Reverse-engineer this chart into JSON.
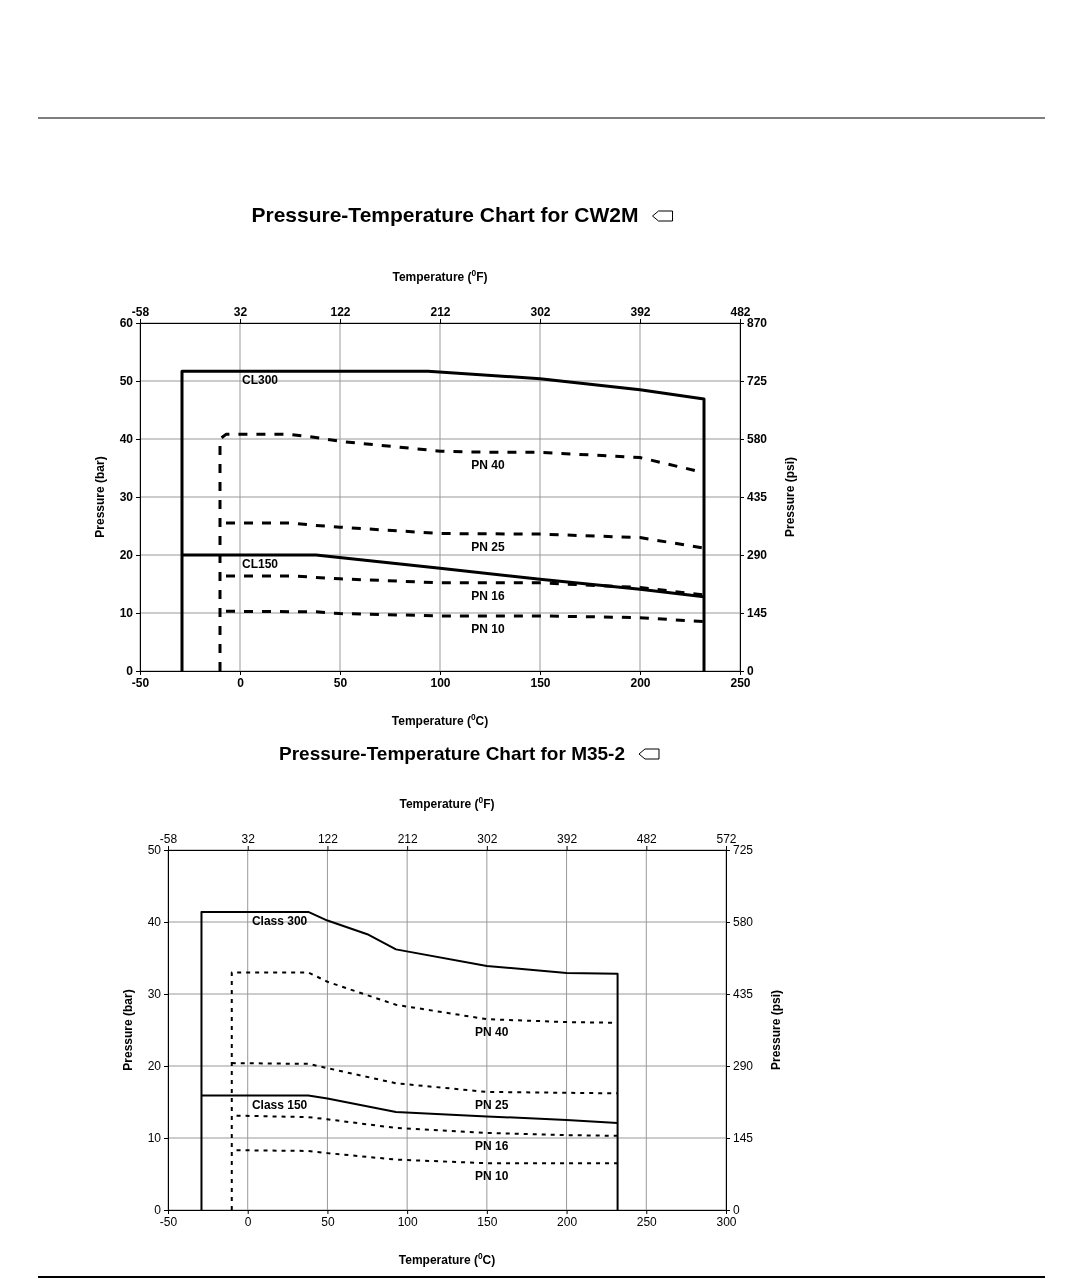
{
  "chart_data": [
    {
      "type": "line",
      "title": "Pressure-Temperature Chart for CW2M",
      "xlabel": "Temperature ($^{0}$C)",
      "x2label": "Temperature ($^{0}$F)",
      "ylabel": "Pressure (bar)",
      "y2label": "Pressure (psi)",
      "xlim": [
        -50,
        250
      ],
      "xticks": [
        -50,
        0,
        50,
        100,
        150,
        200,
        250
      ],
      "x2lim": [
        -58,
        482
      ],
      "x2ticks": [
        -58,
        32,
        122,
        212,
        302,
        392,
        482
      ],
      "ylim": [
        0,
        60
      ],
      "yticks": [
        0,
        10,
        20,
        30,
        40,
        50,
        60
      ],
      "y2lim": [
        0,
        870
      ],
      "y2ticks": [
        0,
        145,
        290,
        435,
        580,
        725,
        870
      ],
      "grid": true,
      "series": [
        {
          "name": "CL300",
          "color": "#000000",
          "line_style": "solid",
          "x": [
            -29,
            -29,
            38,
            94,
            150,
            200,
            232,
            232
          ],
          "values": [
            0,
            51.7,
            51.7,
            51.7,
            50.4,
            48.5,
            46.9,
            0
          ]
        },
        {
          "name": "PN 40",
          "color": "#000000",
          "line_style": "dashed",
          "x": [
            -10,
            -10,
            -7,
            25,
            35,
            50,
            100,
            125,
            150,
            200,
            232
          ],
          "values": [
            0,
            40,
            40.8,
            40.8,
            40.4,
            39.6,
            37.9,
            37.7,
            37.7,
            36.8,
            34.2
          ]
        },
        {
          "name": "PN 25",
          "color": "#000000",
          "line_style": "dashed",
          "x": [
            -7,
            25,
            38,
            50,
            100,
            150,
            200,
            232
          ],
          "values": [
            25.5,
            25.5,
            25.1,
            24.8,
            23.7,
            23.6,
            23,
            21.2
          ]
        },
        {
          "name": "CL150",
          "color": "#000000",
          "line_style": "solid",
          "x": [
            -29,
            38,
            100,
            150,
            200,
            232
          ],
          "values": [
            20,
            20,
            17.7,
            15.8,
            14.1,
            12.8
          ]
        },
        {
          "name": "PN 16",
          "color": "#000000",
          "line_style": "dashed",
          "x": [
            -7,
            25,
            50,
            100,
            150,
            200,
            232
          ],
          "values": [
            16.4,
            16.4,
            15.9,
            15.2,
            15.2,
            14.4,
            13.1
          ]
        },
        {
          "name": "PN 10",
          "color": "#000000",
          "line_style": "dashed",
          "x": [
            -7,
            38,
            50,
            100,
            150,
            200,
            232
          ],
          "values": [
            10.3,
            10.2,
            9.9,
            9.5,
            9.5,
            9.2,
            8.5
          ]
        }
      ]
    },
    {
      "type": "line",
      "title": "Pressure-Temperature Chart for M35-2",
      "xlabel": "Temperature ($^{0}$C)",
      "x2label": "Temperature ($^{0}$F)",
      "ylabel": "Pressure (bar)",
      "y2label": "Pressure (psi)",
      "xlim": [
        -50,
        300
      ],
      "xticks": [
        -50,
        0,
        50,
        100,
        150,
        200,
        250,
        300
      ],
      "x2lim": [
        -58,
        572
      ],
      "x2ticks": [
        -58,
        32,
        122,
        212,
        302,
        392,
        482,
        572
      ],
      "ylim": [
        0,
        50
      ],
      "yticks": [
        0,
        10,
        20,
        30,
        40,
        50
      ],
      "y2lim": [
        0,
        725
      ],
      "y2ticks": [
        0,
        145,
        290,
        435,
        580,
        725
      ],
      "grid": true,
      "series": [
        {
          "name": "Class 300",
          "color": "#000000",
          "line_style": "solid",
          "x": [
            -29,
            -29,
            38,
            50,
            75,
            93,
            150,
            200,
            232,
            232
          ],
          "values": [
            0,
            41.4,
            41.4,
            40.2,
            38.3,
            36.2,
            33.9,
            32.9,
            32.8,
            0
          ]
        },
        {
          "name": "PN 40",
          "color": "#000000",
          "line_style": "dotted",
          "x": [
            -10,
            -10,
            38,
            50,
            93,
            150,
            200,
            232
          ],
          "values": [
            0,
            33,
            33,
            31.7,
            28.5,
            26.5,
            26.1,
            26
          ]
        },
        {
          "name": "PN 25",
          "color": "#000000",
          "line_style": "dotted",
          "x": [
            -10,
            38,
            50,
            93,
            150,
            232
          ],
          "values": [
            20.4,
            20.3,
            19.7,
            17.6,
            16.4,
            16.2
          ]
        },
        {
          "name": "Class 150",
          "color": "#000000",
          "line_style": "solid",
          "x": [
            -29,
            38,
            50,
            93,
            150,
            200,
            232
          ],
          "values": [
            15.9,
            15.9,
            15.5,
            13.6,
            13,
            12.5,
            12.1
          ]
        },
        {
          "name": "PN 16",
          "color": "#000000",
          "line_style": "dotted",
          "x": [
            -7,
            38,
            50,
            93,
            150,
            200,
            232
          ],
          "values": [
            13.1,
            12.9,
            12.6,
            11.4,
            10.7,
            10.4,
            10.3
          ]
        },
        {
          "name": "PN 10",
          "color": "#000000",
          "line_style": "dotted",
          "x": [
            -7,
            38,
            50,
            93,
            150,
            232
          ],
          "values": [
            8.3,
            8.2,
            7.9,
            7,
            6.5,
            6.5
          ]
        }
      ]
    }
  ]
}
